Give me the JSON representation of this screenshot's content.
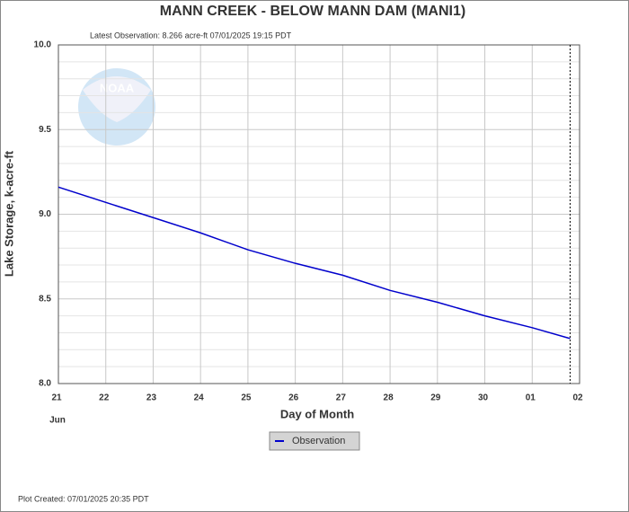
{
  "chart_data": {
    "type": "line",
    "title": "MANN CREEK - BELOW MANN DAM  (MANI1)",
    "subtitle": "Latest Observation:  8.266 acre-ft 07/01/2025 19:15 PDT",
    "y_label": "Lake Storage, k-acre-ft",
    "x_label": "Day of Month",
    "x_month_label": "Jun",
    "footer": "Plot Created: 07/01/2025 20:35 PDT",
    "logo_text": "NOAA",
    "x": [
      0,
      1,
      2,
      3,
      4,
      5,
      6,
      7,
      8,
      9,
      10,
      10.8
    ],
    "series": [
      {
        "name": "Observation",
        "color": "#0000cc",
        "values": [
          9.16,
          9.07,
          8.98,
          8.89,
          8.79,
          8.71,
          8.64,
          8.55,
          8.48,
          8.4,
          8.33,
          8.266
        ]
      }
    ],
    "xlim": [
      0,
      11
    ],
    "xticks": [
      {
        "value": 0,
        "label": "21"
      },
      {
        "value": 1,
        "label": "22"
      },
      {
        "value": 2,
        "label": "23"
      },
      {
        "value": 3,
        "label": "24"
      },
      {
        "value": 4,
        "label": "25"
      },
      {
        "value": 5,
        "label": "26"
      },
      {
        "value": 6,
        "label": "27"
      },
      {
        "value": 7,
        "label": "28"
      },
      {
        "value": 8,
        "label": "29"
      },
      {
        "value": 9,
        "label": "30"
      },
      {
        "value": 10,
        "label": "01"
      },
      {
        "value": 11,
        "label": "02"
      }
    ],
    "ylim": [
      8,
      10
    ],
    "yticks": [
      {
        "value": 8,
        "label": "8.0"
      },
      8.5,
      {
        "value": 9,
        "label": "9.0"
      },
      9.5,
      {
        "value": 10,
        "label": "10.0"
      }
    ],
    "minor_yticks": [
      8.1,
      8.2,
      8.3,
      8.4,
      8.6,
      8.7,
      8.8,
      8.9,
      9.1,
      9.2,
      9.3,
      9.4,
      9.6,
      9.7,
      9.8,
      9.9
    ],
    "grid": true,
    "legend": "bottom"
  }
}
